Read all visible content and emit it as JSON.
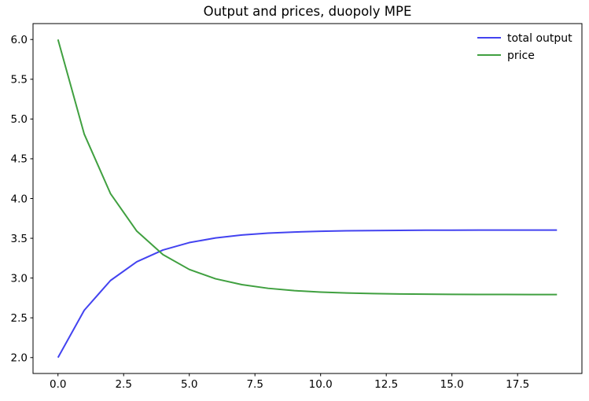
{
  "chart_data": {
    "type": "line",
    "title": "Output and prices, duopoly MPE",
    "xlabel": "",
    "ylabel": "",
    "grid": false,
    "legend_position": "upper right",
    "legend_frame": false,
    "xlim": [
      -0.95,
      19.95
    ],
    "ylim": [
      1.8,
      6.2
    ],
    "x": [
      0,
      1,
      2,
      3,
      4,
      5,
      6,
      7,
      8,
      9,
      10,
      11,
      12,
      13,
      14,
      15,
      16,
      17,
      18,
      19
    ],
    "series": [
      {
        "name": "total output",
        "color": "#4343f0",
        "linewidth": 2,
        "values": [
          2.0,
          2.595,
          2.9692,
          3.2047,
          3.3528,
          3.4459,
          3.5045,
          3.5414,
          3.5646,
          3.5791,
          3.5883,
          3.5941,
          3.5977,
          3.6,
          3.6014,
          3.6023,
          3.6029,
          3.6033,
          3.6035,
          3.6036
        ]
      },
      {
        "name": "price",
        "color": "#40a040",
        "linewidth": 2,
        "values": [
          6.0,
          4.81,
          4.0616,
          3.5907,
          3.2945,
          3.1082,
          2.991,
          2.9173,
          2.8709,
          2.8417,
          2.8234,
          2.8119,
          2.8046,
          2.8,
          2.7971,
          2.7953,
          2.7942,
          2.7935,
          2.793,
          2.7928
        ]
      }
    ],
    "x_ticks": {
      "values": [
        0.0,
        2.5,
        5.0,
        7.5,
        10.0,
        12.5,
        15.0,
        17.5
      ],
      "labels": [
        "0.0",
        "2.5",
        "5.0",
        "7.5",
        "10.0",
        "12.5",
        "15.0",
        "17.5"
      ]
    },
    "y_ticks": {
      "values": [
        2.0,
        2.5,
        3.0,
        3.5,
        4.0,
        4.5,
        5.0,
        5.5,
        6.0
      ],
      "labels": [
        "2.0",
        "2.5",
        "3.0",
        "3.5",
        "4.0",
        "4.5",
        "5.0",
        "5.5",
        "6.0"
      ]
    },
    "colors": {
      "spine": "#000000",
      "tick": "#000000",
      "background": "#ffffff"
    }
  }
}
